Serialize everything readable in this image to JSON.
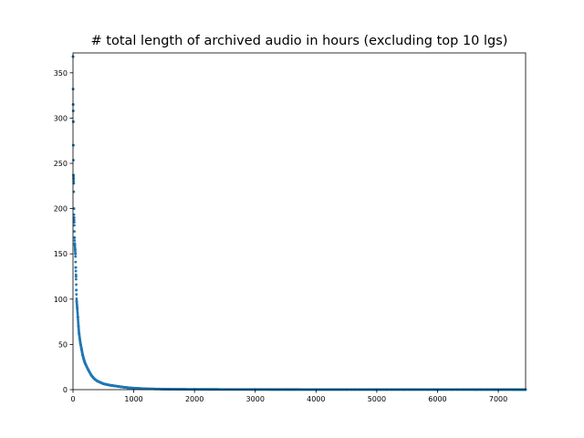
{
  "chart_data": {
    "type": "scatter",
    "title": "# total length of archived audio in hours (excluding top 10 lgs)",
    "xlabel": "",
    "ylabel": "",
    "xlim": [
      0,
      7450
    ],
    "ylim": [
      0,
      372
    ],
    "xticks": [
      0,
      1000,
      2000,
      3000,
      4000,
      5000,
      6000,
      7000
    ],
    "yticks": [
      0,
      50,
      100,
      150,
      200,
      250,
      300,
      350
    ],
    "grid": false,
    "series_color": "#1f77b4",
    "series": [
      {
        "rank": [
          1,
          2,
          3,
          4,
          5,
          6,
          8,
          10,
          12,
          15,
          18,
          20,
          25,
          30,
          35,
          40,
          45,
          50,
          55,
          60,
          70,
          80,
          90,
          100,
          120,
          140,
          160,
          180,
          200,
          250,
          300,
          350,
          400,
          450,
          500,
          600,
          700,
          800,
          900,
          1000,
          1200,
          1500,
          2000,
          3000,
          4000,
          5000,
          6000,
          7000,
          7450
        ],
        "hours": [
          368,
          332,
          315,
          308,
          296,
          270,
          237,
          233,
          228,
          200,
          190,
          185,
          168,
          160,
          155,
          150,
          135,
          125,
          110,
          98,
          90,
          80,
          70,
          62,
          52,
          45,
          38,
          33,
          29,
          22,
          16,
          12,
          9.5,
          8,
          6.5,
          5,
          4,
          3,
          2.2,
          1.6,
          1.0,
          0.6,
          0.35,
          0.2,
          0.15,
          0.12,
          0.1,
          0.08,
          0.05
        ]
      }
    ]
  }
}
